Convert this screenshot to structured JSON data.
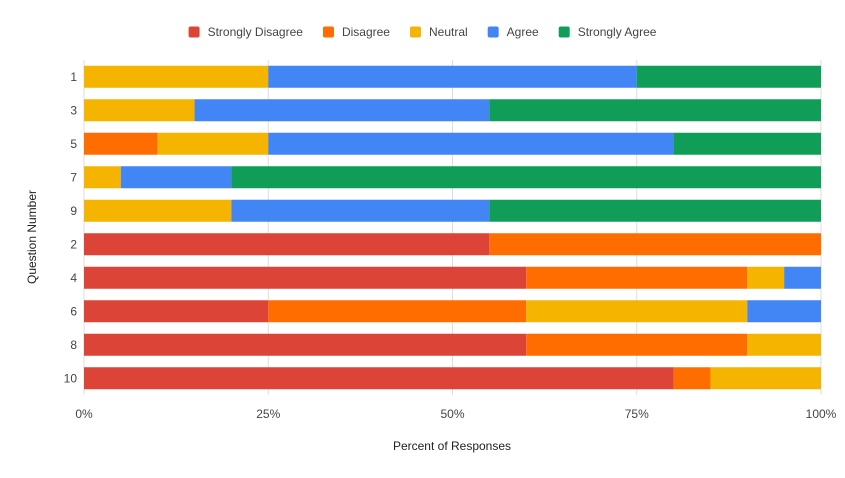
{
  "chart_data": {
    "type": "bar",
    "orientation": "horizontal",
    "stacked": true,
    "title": "",
    "xlabel": "Percent of Responses",
    "ylabel": "Question Number",
    "xlim": [
      0,
      100
    ],
    "x_ticks": [
      "0%",
      "25%",
      "50%",
      "75%",
      "100%"
    ],
    "x_tick_values": [
      0,
      25,
      50,
      75,
      100
    ],
    "grid": true,
    "legend_position": "top",
    "categories": [
      "1",
      "3",
      "5",
      "7",
      "9",
      "2",
      "4",
      "6",
      "8",
      "10"
    ],
    "series": [
      {
        "name": "Strongly Disagree",
        "color": "#db4437",
        "values": [
          0,
          0,
          0,
          0,
          0,
          55,
          60,
          25,
          60,
          80
        ]
      },
      {
        "name": "Disagree",
        "color": "#ff6d00",
        "values": [
          0,
          0,
          10,
          0,
          0,
          45,
          30,
          35,
          30,
          5
        ]
      },
      {
        "name": "Neutral",
        "color": "#f4b400",
        "values": [
          25,
          15,
          15,
          5,
          20,
          0,
          5,
          30,
          10,
          15
        ]
      },
      {
        "name": "Agree",
        "color": "#4285f4",
        "values": [
          50,
          40,
          55,
          15,
          35,
          0,
          5,
          10,
          0,
          0
        ]
      },
      {
        "name": "Strongly Agree",
        "color": "#0f9d58",
        "values": [
          25,
          45,
          20,
          80,
          45,
          0,
          0,
          0,
          0,
          0
        ]
      }
    ]
  }
}
